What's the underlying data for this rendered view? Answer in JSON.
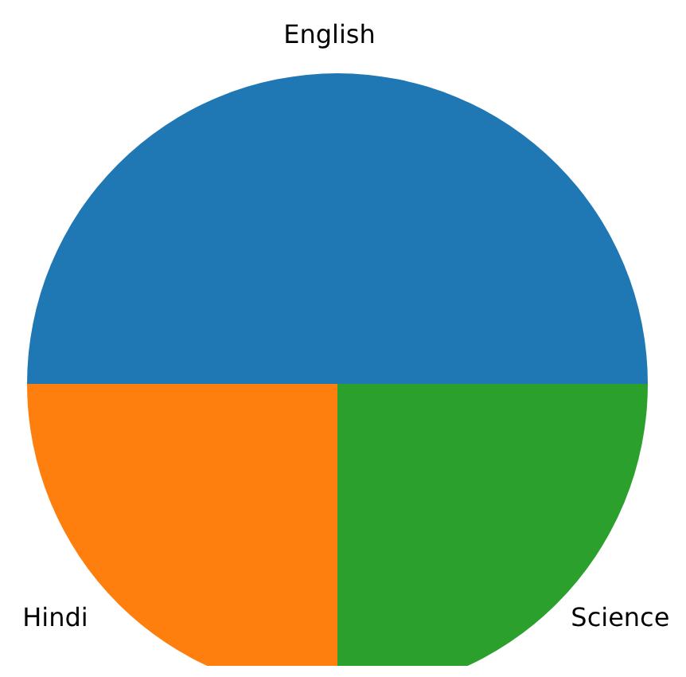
{
  "chart_data": {
    "type": "pie",
    "categories": [
      "English",
      "Hindi",
      "Science"
    ],
    "values": [
      50,
      25,
      25
    ],
    "colors": [
      "#1f77b4",
      "#ff7f0e",
      "#2ca02c"
    ]
  }
}
